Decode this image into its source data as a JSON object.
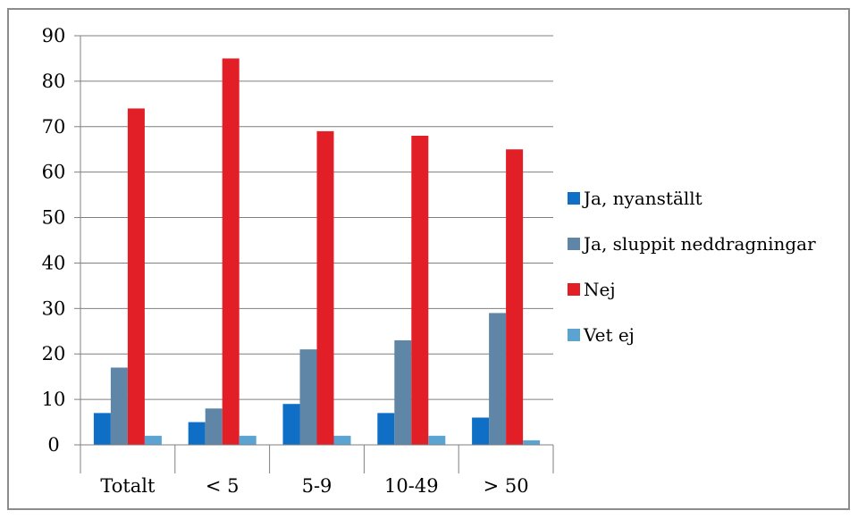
{
  "chart_data": {
    "type": "bar",
    "title": "",
    "xlabel": "",
    "ylabel": "",
    "categories": [
      "Totalt",
      "< 5",
      "5-9",
      "10-49",
      "> 50"
    ],
    "ylim": [
      0,
      90
    ],
    "yticks": [
      0,
      10,
      20,
      30,
      40,
      50,
      60,
      70,
      80,
      90
    ],
    "grid": true,
    "legend_position": "right",
    "series": [
      {
        "name": "Ja, nyanställt",
        "color": "#0F6FC6",
        "values": [
          7,
          5,
          9,
          7,
          6
        ]
      },
      {
        "name": "Ja, sluppit neddragningar",
        "color": "#5F86A6",
        "values": [
          17,
          8,
          21,
          23,
          29
        ]
      },
      {
        "name": "Nej",
        "color": "#E21E26",
        "values": [
          74,
          85,
          69,
          68,
          65
        ]
      },
      {
        "name": "Vet ej",
        "color": "#5BA3D0",
        "values": [
          2,
          2,
          2,
          2,
          1
        ]
      }
    ]
  }
}
